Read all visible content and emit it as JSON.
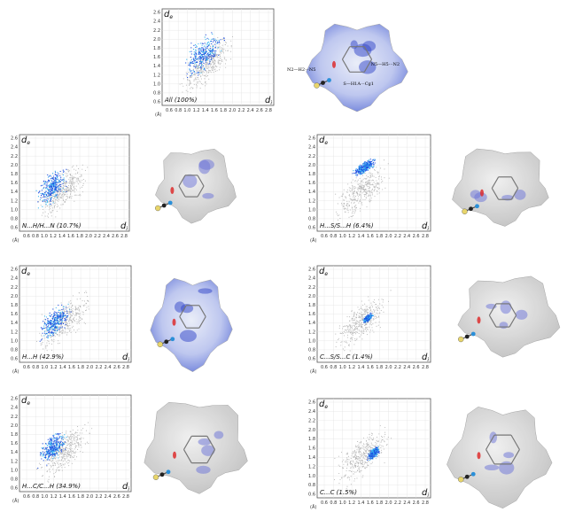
{
  "axis": {
    "y_label": {
      "base": "d",
      "sub": "e"
    },
    "x_label": {
      "base": "d",
      "sub": "i"
    },
    "unit": "(Å)",
    "y_ticks": [
      "2.6",
      "2.4",
      "2.2",
      "2.0",
      "1.8",
      "1.6",
      "1.4",
      "1.2",
      "1.0",
      "0.8",
      "0.6"
    ],
    "x_ticks": [
      "0.6",
      "0.8",
      "1.0",
      "1.2",
      "1.4",
      "1.6",
      "1.8",
      "2.0",
      "2.2",
      "2.4",
      "2.6",
      "2.8"
    ]
  },
  "panels": [
    {
      "label": "All (100%)"
    },
    {
      "label": "N...H/H...N (10.7%)"
    },
    {
      "label": "H...S/S...H (6.4%)"
    },
    {
      "label": "H...H (42.9%)"
    },
    {
      "label": "C...S/S...C (1.4%)"
    },
    {
      "label": "H...C/C...H (34.9%)"
    },
    {
      "label": "C...C (1.5%)"
    }
  ],
  "contacts": [
    "N2—H2···N5",
    "N5—H5···N2",
    "S—H1A···Cg1"
  ]
}
